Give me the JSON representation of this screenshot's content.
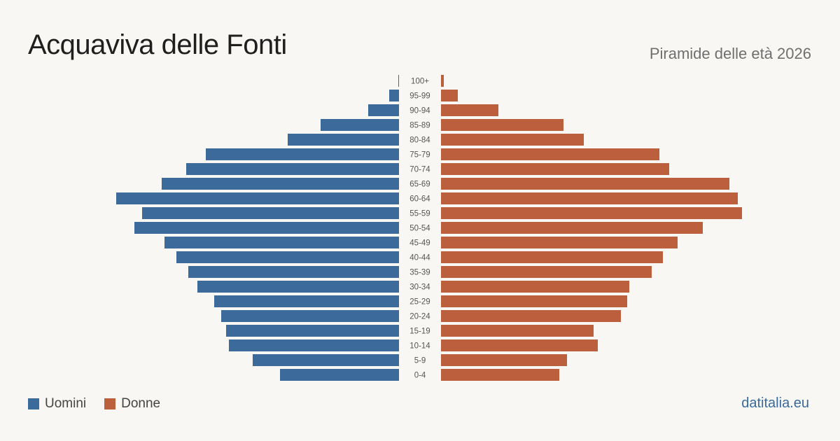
{
  "header": {
    "title": "Acquaviva delle Fonti",
    "subtitle": "Piramide delle età 2026"
  },
  "legend": {
    "men_label": "Uomini",
    "women_label": "Donne"
  },
  "brand": "datitalia.eu",
  "colors": {
    "men": "#3b6a9b",
    "women": "#bb5f3d",
    "background": "#f9f7f3"
  },
  "chart_data": {
    "type": "bar",
    "orientation": "horizontal-pyramid",
    "categories": [
      "100+",
      "95-99",
      "90-94",
      "85-89",
      "80-84",
      "75-79",
      "70-74",
      "65-69",
      "60-64",
      "55-59",
      "50-54",
      "45-49",
      "40-44",
      "35-39",
      "30-34",
      "25-29",
      "20-24",
      "15-19",
      "10-14",
      "5-9",
      "0-4"
    ],
    "series": [
      {
        "name": "Uomini",
        "values": [
          1,
          14,
          44,
          112,
          159,
          276,
          304,
          339,
          404,
          367,
          378,
          335,
          318,
          301,
          288,
          264,
          254,
          247,
          243,
          209,
          170
        ]
      },
      {
        "name": "Donne",
        "values": [
          4,
          24,
          82,
          175,
          204,
          312,
          326,
          412,
          424,
          430,
          374,
          338,
          317,
          301,
          269,
          266,
          257,
          218,
          224,
          180,
          169
        ]
      }
    ],
    "grid": false,
    "legend_position": "bottom-left"
  }
}
